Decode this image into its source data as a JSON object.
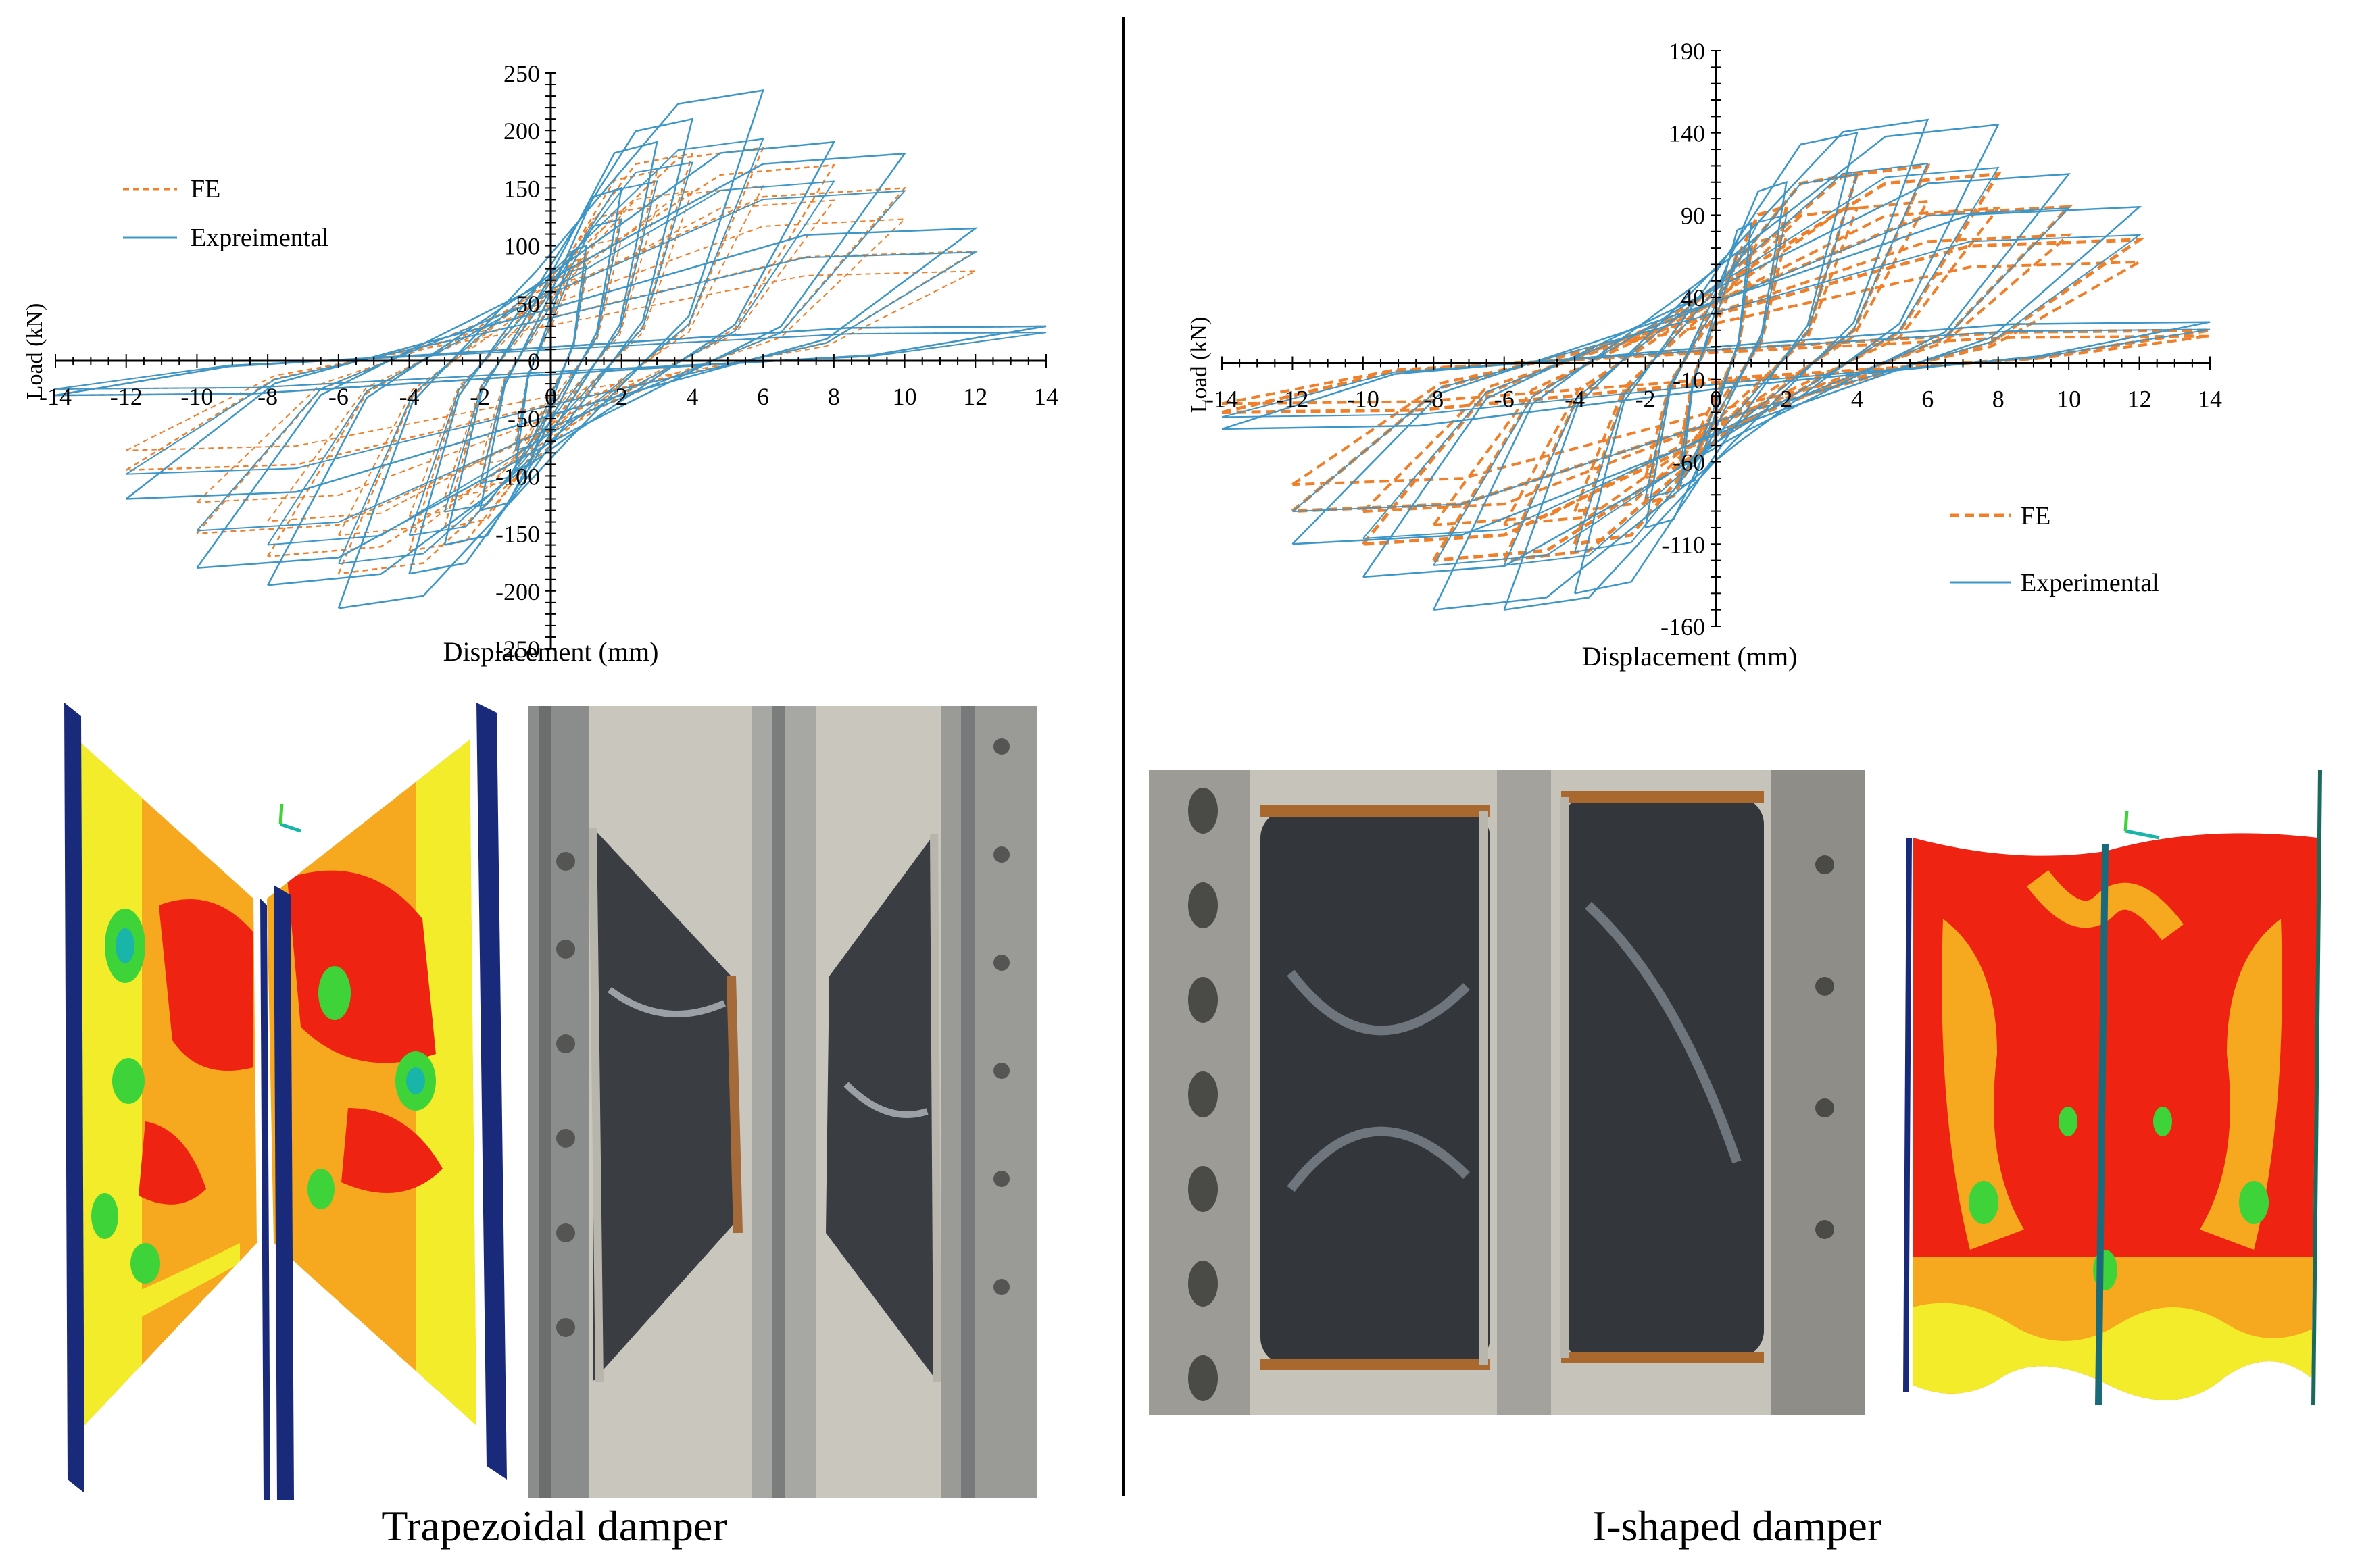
{
  "figure": {
    "captions": [
      "Trapezoidal damper",
      "I-shaped damper"
    ]
  },
  "chart_data": [
    {
      "type": "line",
      "title": "",
      "xlabel": "Displacement (mm)",
      "ylabel": "Load (kN)",
      "xlim": [
        -14,
        14
      ],
      "ylim": [
        -250,
        250
      ],
      "x_ticks": [
        "-14",
        "-12",
        "-10",
        "-8",
        "-6",
        "-4",
        "-2",
        "0",
        "2",
        "4",
        "6",
        "8",
        "10",
        "12",
        "14"
      ],
      "y_ticks": [
        "250",
        "200",
        "150",
        "100",
        "50",
        "0",
        "-50",
        "-100",
        "-150",
        "-200",
        "-250"
      ],
      "legend": {
        "placement": "upper-left"
      },
      "series": [
        {
          "name": "FE",
          "color": "#f07f2a",
          "style": "dashed",
          "cycles": [
            {
              "amp": 1,
              "peak": 90,
              "trough": -85
            },
            {
              "amp": 2,
              "peak": 130,
              "trough": -110
            },
            {
              "amp": 3,
              "peak": 165,
              "trough": -145
            },
            {
              "amp": 4,
              "peak": 180,
              "trough": -165
            },
            {
              "amp": 6,
              "peak": 185,
              "trough": -185
            },
            {
              "amp": 8,
              "peak": 170,
              "trough": -170
            },
            {
              "amp": 10,
              "peak": 150,
              "trough": -150
            },
            {
              "amp": 12,
              "peak": 95,
              "trough": -95
            },
            {
              "amp": 14,
              "peak": 30,
              "trough": -30
            }
          ]
        },
        {
          "name": "Expreimental",
          "color": "#3c96c8",
          "style": "solid",
          "cycles": [
            {
              "amp": 1,
              "peak": 100,
              "trough": -95
            },
            {
              "amp": 2,
              "peak": 150,
              "trough": -130
            },
            {
              "amp": 3,
              "peak": 190,
              "trough": -160
            },
            {
              "amp": 4,
              "peak": 210,
              "trough": -185
            },
            {
              "amp": 6,
              "peak": 235,
              "trough": -215
            },
            {
              "amp": 8,
              "peak": 190,
              "trough": -195
            },
            {
              "amp": 10,
              "peak": 180,
              "trough": -180
            },
            {
              "amp": 12,
              "peak": 115,
              "trough": -120
            },
            {
              "amp": 14,
              "peak": 30,
              "trough": -30
            }
          ]
        }
      ]
    },
    {
      "type": "line",
      "title": "",
      "xlabel": "Displacement (mm)",
      "ylabel": "Load (kN)",
      "xlim": [
        -14,
        14
      ],
      "ylim": [
        -160,
        190
      ],
      "x_ticks": [
        "-14",
        "-12",
        "-10",
        "-8",
        "-6",
        "-4",
        "-2",
        "0",
        "2",
        "4",
        "6",
        "8",
        "10",
        "12",
        "14"
      ],
      "y_ticks": [
        "190",
        "140",
        "90",
        "40",
        "-10",
        "-60",
        "-110",
        "-160"
      ],
      "legend": {
        "placement": "lower-right"
      },
      "series": [
        {
          "name": "FE",
          "color": "#f07f2a",
          "style": "dashed",
          "cycles": [
            {
              "amp": 1,
              "peak": 70,
              "trough": -60
            },
            {
              "amp": 2,
              "peak": 95,
              "trough": -85
            },
            {
              "amp": 4,
              "peak": 115,
              "trough": -110
            },
            {
              "amp": 6,
              "peak": 120,
              "trough": -120
            },
            {
              "amp": 8,
              "peak": 115,
              "trough": -120
            },
            {
              "amp": 10,
              "peak": 95,
              "trough": -110
            },
            {
              "amp": 12,
              "peak": 75,
              "trough": -90
            },
            {
              "amp": 14,
              "peak": 20,
              "trough": -30
            }
          ]
        },
        {
          "name": "Experimental",
          "color": "#3c96c8",
          "style": "solid",
          "cycles": [
            {
              "amp": 1,
              "peak": 85,
              "trough": -75
            },
            {
              "amp": 2,
              "peak": 110,
              "trough": -100
            },
            {
              "amp": 4,
              "peak": 140,
              "trough": -140
            },
            {
              "amp": 6,
              "peak": 148,
              "trough": -150
            },
            {
              "amp": 8,
              "peak": 145,
              "trough": -150
            },
            {
              "amp": 10,
              "peak": 115,
              "trough": -130
            },
            {
              "amp": 12,
              "peak": 95,
              "trough": -110
            },
            {
              "amp": 14,
              "peak": 25,
              "trough": -40
            }
          ]
        }
      ]
    }
  ],
  "images": [
    {
      "name": "trapezoidal-fe-contour",
      "kind": "contour",
      "palette": [
        "#f2ec2a",
        "#f6a81e",
        "#ee2312",
        "#3fd33a",
        "#19b5a8",
        "#1a2a7a"
      ]
    },
    {
      "name": "trapezoidal-test-photo",
      "kind": "photo",
      "palette": [
        "#8b8d8c",
        "#3a3d42",
        "#c9c6bd",
        "#a46a3a"
      ]
    },
    {
      "name": "i-shaped-test-photo",
      "kind": "photo",
      "palette": [
        "#9c9b95",
        "#33363b",
        "#c5c3ba",
        "#a8682e"
      ]
    },
    {
      "name": "i-shaped-fe-contour",
      "kind": "contour",
      "palette": [
        "#ee2312",
        "#f6a81e",
        "#f2ec2a",
        "#3fd33a",
        "#1a2a7a"
      ]
    }
  ]
}
